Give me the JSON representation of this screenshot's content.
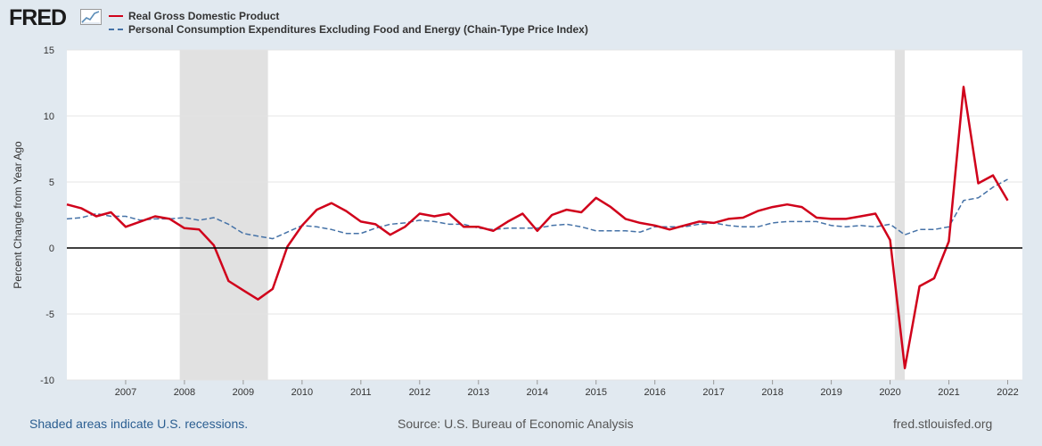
{
  "brand": {
    "name": "FRED",
    "logo_icon": "chart-trend-icon"
  },
  "legend": [
    {
      "label": "Real Gross Domestic Product",
      "color": "#d0021b",
      "style": "solid"
    },
    {
      "label": "Personal Consumption Expenditures Excluding Food and Energy (Chain-Type Price Index)",
      "color": "#4572a7",
      "style": "dashed"
    }
  ],
  "footer": {
    "recession_note": "Shaded areas indicate U.S. recessions.",
    "source": "Source: U.S. Bureau of Economic Analysis",
    "url": "fred.stlouisfed.org"
  },
  "chart_data": {
    "type": "line",
    "ylabel": "Percent Change from Year Ago",
    "ylim": [
      -10,
      15
    ],
    "xlim": [
      2006.0,
      2022.25
    ],
    "yticks": [
      -10,
      -5,
      0,
      5,
      10,
      15
    ],
    "xticks": [
      2007,
      2008,
      2009,
      2010,
      2011,
      2012,
      2013,
      2014,
      2015,
      2016,
      2017,
      2018,
      2019,
      2020,
      2021,
      2022
    ],
    "grid": "horizontal",
    "zero_line": true,
    "recessions": [
      [
        2007.92,
        2009.42
      ],
      [
        2020.08,
        2020.25
      ]
    ],
    "series": [
      {
        "name": "Real Gross Domestic Product",
        "color": "#d0021b",
        "style": "solid",
        "x": [
          2006.0,
          2006.25,
          2006.5,
          2006.75,
          2007.0,
          2007.25,
          2007.5,
          2007.75,
          2008.0,
          2008.25,
          2008.5,
          2008.75,
          2009.0,
          2009.25,
          2009.5,
          2009.75,
          2010.0,
          2010.25,
          2010.5,
          2010.75,
          2011.0,
          2011.25,
          2011.5,
          2011.75,
          2012.0,
          2012.25,
          2012.5,
          2012.75,
          2013.0,
          2013.25,
          2013.5,
          2013.75,
          2014.0,
          2014.25,
          2014.5,
          2014.75,
          2015.0,
          2015.25,
          2015.5,
          2015.75,
          2016.0,
          2016.25,
          2016.5,
          2016.75,
          2017.0,
          2017.25,
          2017.5,
          2017.75,
          2018.0,
          2018.25,
          2018.5,
          2018.75,
          2019.0,
          2019.25,
          2019.5,
          2019.75,
          2020.0,
          2020.25,
          2020.5,
          2020.75,
          2021.0,
          2021.25,
          2021.5,
          2021.75,
          2022.0
        ],
        "values": [
          3.3,
          3.0,
          2.4,
          2.7,
          1.6,
          2.0,
          2.4,
          2.2,
          1.5,
          1.4,
          0.2,
          -2.5,
          -3.2,
          -3.9,
          -3.1,
          0.1,
          1.7,
          2.9,
          3.4,
          2.8,
          2.0,
          1.8,
          1.0,
          1.6,
          2.6,
          2.4,
          2.6,
          1.6,
          1.6,
          1.3,
          2.0,
          2.6,
          1.3,
          2.5,
          2.9,
          2.7,
          3.8,
          3.1,
          2.2,
          1.9,
          1.7,
          1.4,
          1.7,
          2.0,
          1.9,
          2.2,
          2.3,
          2.8,
          3.1,
          3.3,
          3.1,
          2.3,
          2.2,
          2.2,
          2.4,
          2.6,
          0.6,
          -9.1,
          -2.9,
          -2.3,
          0.5,
          12.2,
          4.9,
          5.5,
          3.6
        ]
      },
      {
        "name": "Personal Consumption Expenditures Excluding Food and Energy (Chain-Type Price Index)",
        "color": "#4572a7",
        "style": "dashed",
        "x": [
          2006.0,
          2006.25,
          2006.5,
          2006.75,
          2007.0,
          2007.25,
          2007.5,
          2007.75,
          2008.0,
          2008.25,
          2008.5,
          2008.75,
          2009.0,
          2009.25,
          2009.5,
          2009.75,
          2010.0,
          2010.25,
          2010.5,
          2010.75,
          2011.0,
          2011.25,
          2011.5,
          2011.75,
          2012.0,
          2012.25,
          2012.5,
          2012.75,
          2013.0,
          2013.25,
          2013.5,
          2013.75,
          2014.0,
          2014.25,
          2014.5,
          2014.75,
          2015.0,
          2015.25,
          2015.5,
          2015.75,
          2016.0,
          2016.25,
          2016.5,
          2016.75,
          2017.0,
          2017.25,
          2017.5,
          2017.75,
          2018.0,
          2018.25,
          2018.5,
          2018.75,
          2019.0,
          2019.25,
          2019.5,
          2019.75,
          2020.0,
          2020.25,
          2020.5,
          2020.75,
          2021.0,
          2021.25,
          2021.5,
          2021.75,
          2022.0
        ],
        "values": [
          2.2,
          2.3,
          2.6,
          2.4,
          2.4,
          2.1,
          2.2,
          2.2,
          2.3,
          2.1,
          2.3,
          1.8,
          1.1,
          0.9,
          0.7,
          1.2,
          1.7,
          1.6,
          1.4,
          1.1,
          1.1,
          1.5,
          1.8,
          1.9,
          2.1,
          2.0,
          1.8,
          1.8,
          1.5,
          1.4,
          1.5,
          1.5,
          1.5,
          1.7,
          1.8,
          1.6,
          1.3,
          1.3,
          1.3,
          1.2,
          1.6,
          1.6,
          1.6,
          1.8,
          1.9,
          1.7,
          1.6,
          1.6,
          1.9,
          2.0,
          2.0,
          2.0,
          1.7,
          1.6,
          1.7,
          1.6,
          1.8,
          1.0,
          1.4,
          1.4,
          1.6,
          3.6,
          3.8,
          4.6,
          5.2
        ]
      }
    ]
  }
}
